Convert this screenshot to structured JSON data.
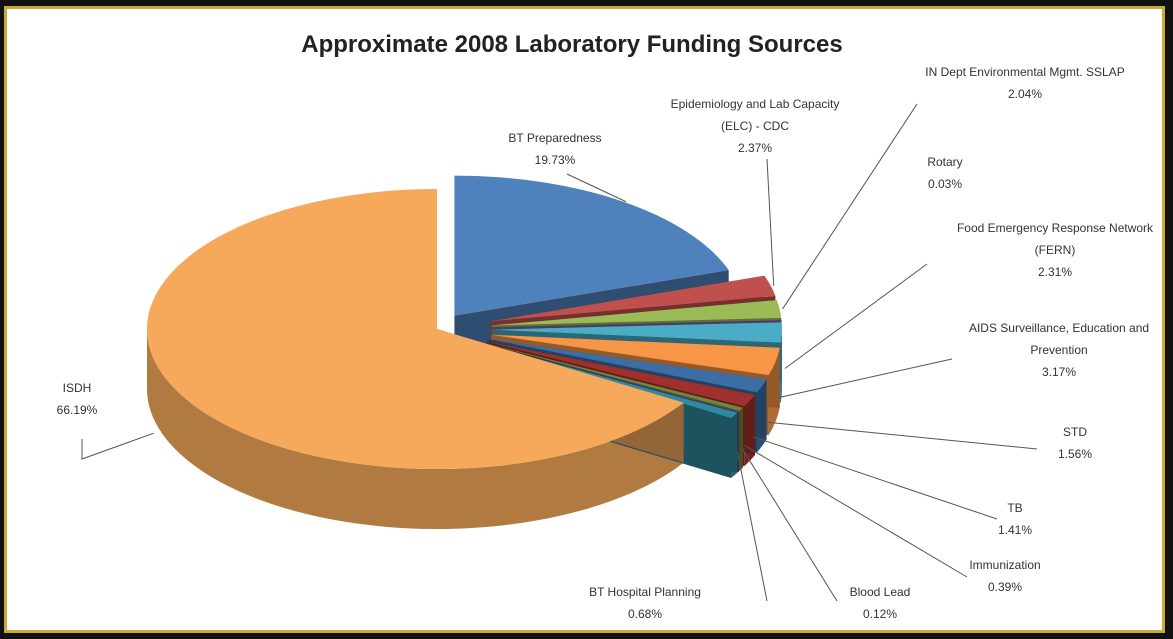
{
  "chart_data": {
    "type": "pie3d",
    "title": "Approximate 2008 Laboratory Funding Sources",
    "categories": [
      "BT Preparedness",
      "Epidemiology and Lab Capacity (ELC) - CDC",
      "IN Dept Environmental Mgmt. SSLAP",
      "Rotary",
      "Food Emergency Response Network (FERN)",
      "AIDS Surveillance, Education and Prevention",
      "STD",
      "TB",
      "Immunization",
      "Blood Lead",
      "BT Hospital Planning",
      "ISDH"
    ],
    "values": [
      19.73,
      2.37,
      2.04,
      0.03,
      2.31,
      3.17,
      1.56,
      1.41,
      0.39,
      0.12,
      0.68,
      66.19
    ],
    "value_labels": [
      "19.73%",
      "2.37%",
      "2.04%",
      "0.03%",
      "2.31%",
      "3.17%",
      "1.56%",
      "1.41%",
      "0.39%",
      "0.12%",
      "0.68%",
      "66.19%"
    ],
    "colors": [
      "#4f81bd",
      "#c0504d",
      "#9bbb59",
      "#8064a2",
      "#4bacc6",
      "#f79646",
      "#3a6ea5",
      "#a0302c",
      "#6f8a35",
      "#5b4778",
      "#2e8a9e",
      "#f6a95a"
    ]
  }
}
